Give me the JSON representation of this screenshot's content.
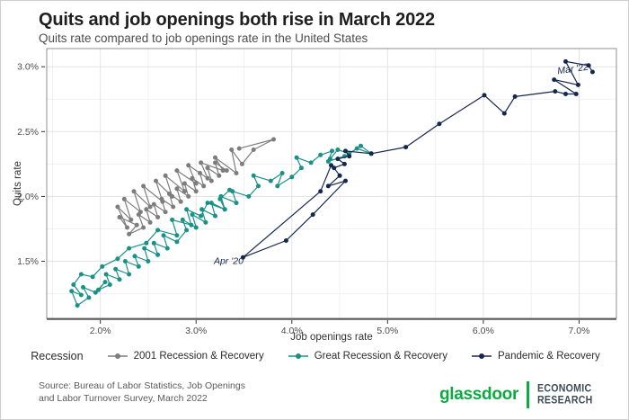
{
  "title": "Quits and job openings both rise in March 2022",
  "subtitle": "Quits rate compared to job openings rate in the United States",
  "source_line1": "Source: Bureau of Labor Statistics, Job Openings",
  "source_line2": "and Labor Turnover Survey, March 2022",
  "branding": {
    "name": "glassdoor",
    "dept_line1": "ECONOMIC",
    "dept_line2": "RESEARCH",
    "brand_green": "#0caa41",
    "dept_color": "#3d4b54"
  },
  "legend": {
    "title": "Recession"
  },
  "chart_data": {
    "type": "scatter",
    "title": "Quits and job openings both rise in March 2022",
    "subtitle": "Quits rate compared to job openings rate in the United States",
    "xlabel": "Job openings rate",
    "ylabel": "Quits rate",
    "xlim": [
      1.44,
      7.39
    ],
    "ylim": [
      1.06,
      3.14
    ],
    "x_ticks": {
      "values": [
        2,
        3,
        4,
        5,
        6,
        7
      ],
      "labels": [
        "2.0%",
        "3.0%",
        "4.0%",
        "5.0%",
        "6.0%",
        "7.0%"
      ]
    },
    "y_ticks": {
      "values": [
        1.5,
        2.0,
        2.5,
        3.0
      ],
      "labels": [
        "1.5%",
        "2.0%",
        "2.5%",
        "3.0%"
      ]
    },
    "x_minor_step": 0.5,
    "y_minor_step": 0.25,
    "grid": true,
    "legend_position": "bottom",
    "connected": true,
    "annotations": [
      {
        "text": "Mar '22",
        "x": 6.94,
        "y": 2.96,
        "rotate": -8
      },
      {
        "text": "Apr '20",
        "x": 3.34,
        "y": 1.48,
        "rotate": 0
      }
    ],
    "series": [
      {
        "name": "2001 Recession & Recovery",
        "color": "#7d7d7d",
        "points": [
          [
            3.45,
            2.37
          ],
          [
            3.81,
            2.44
          ],
          [
            3.6,
            2.36
          ],
          [
            3.48,
            2.25
          ],
          [
            3.37,
            2.36
          ],
          [
            3.42,
            2.18
          ],
          [
            3.2,
            2.3
          ],
          [
            3.28,
            2.2
          ],
          [
            3.05,
            2.26
          ],
          [
            3.12,
            2.14
          ],
          [
            2.92,
            2.24
          ],
          [
            3.0,
            2.1
          ],
          [
            2.8,
            2.2
          ],
          [
            2.88,
            2.04
          ],
          [
            2.68,
            2.16
          ],
          [
            2.75,
            2.0
          ],
          [
            2.58,
            2.12
          ],
          [
            2.65,
            1.96
          ],
          [
            2.45,
            2.08
          ],
          [
            2.52,
            1.92
          ],
          [
            2.35,
            2.04
          ],
          [
            2.42,
            1.88
          ],
          [
            2.25,
            1.98
          ],
          [
            2.32,
            1.82
          ],
          [
            2.18,
            1.92
          ],
          [
            2.28,
            1.76
          ],
          [
            2.2,
            1.84
          ],
          [
            2.38,
            1.78
          ],
          [
            2.3,
            1.71
          ],
          [
            2.45,
            1.76
          ],
          [
            2.4,
            1.86
          ],
          [
            2.52,
            1.8
          ],
          [
            2.48,
            1.9
          ],
          [
            2.6,
            1.84
          ],
          [
            2.56,
            1.94
          ],
          [
            2.68,
            1.88
          ],
          [
            2.64,
            1.98
          ],
          [
            2.76,
            1.92
          ],
          [
            2.72,
            2.02
          ],
          [
            2.84,
            1.96
          ],
          [
            2.8,
            2.06
          ],
          [
            2.92,
            2.0
          ],
          [
            2.88,
            2.1
          ],
          [
            3.0,
            2.04
          ],
          [
            2.96,
            2.14
          ],
          [
            3.08,
            2.08
          ],
          [
            3.04,
            2.18
          ],
          [
            3.16,
            2.12
          ],
          [
            3.12,
            2.22
          ],
          [
            3.24,
            2.16
          ],
          [
            3.2,
            2.26
          ],
          [
            3.32,
            2.2
          ]
        ]
      },
      {
        "name": "Great Recession & Recovery",
        "color": "#1a9187",
        "points": [
          [
            3.35,
            2.05
          ],
          [
            3.25,
            1.98
          ],
          [
            3.3,
            1.9
          ],
          [
            3.12,
            1.95
          ],
          [
            3.05,
            1.85
          ],
          [
            2.9,
            1.9
          ],
          [
            2.95,
            1.78
          ],
          [
            2.75,
            1.82
          ],
          [
            2.8,
            1.7
          ],
          [
            2.6,
            1.74
          ],
          [
            2.48,
            1.64
          ],
          [
            2.3,
            1.6
          ],
          [
            2.18,
            1.52
          ],
          [
            2.02,
            1.46
          ],
          [
            1.92,
            1.38
          ],
          [
            1.8,
            1.4
          ],
          [
            1.72,
            1.32
          ],
          [
            1.8,
            1.24
          ],
          [
            1.7,
            1.27
          ],
          [
            1.76,
            1.16
          ],
          [
            1.88,
            1.22
          ],
          [
            1.82,
            1.3
          ],
          [
            1.95,
            1.26
          ],
          [
            2.05,
            1.34
          ],
          [
            1.98,
            1.28
          ],
          [
            2.1,
            1.32
          ],
          [
            2.06,
            1.4
          ],
          [
            2.2,
            1.36
          ],
          [
            2.16,
            1.44
          ],
          [
            2.3,
            1.4
          ],
          [
            2.26,
            1.5
          ],
          [
            2.4,
            1.46
          ],
          [
            2.36,
            1.54
          ],
          [
            2.5,
            1.5
          ],
          [
            2.46,
            1.6
          ],
          [
            2.6,
            1.55
          ],
          [
            2.56,
            1.64
          ],
          [
            2.7,
            1.6
          ],
          [
            2.66,
            1.7
          ],
          [
            2.8,
            1.65
          ],
          [
            2.9,
            1.74
          ],
          [
            2.86,
            1.82
          ],
          [
            3.0,
            1.76
          ],
          [
            2.96,
            1.86
          ],
          [
            3.1,
            1.8
          ],
          [
            3.06,
            1.9
          ],
          [
            3.2,
            1.85
          ],
          [
            3.16,
            1.95
          ],
          [
            3.3,
            1.9
          ],
          [
            3.26,
            2.0
          ],
          [
            3.42,
            1.95
          ],
          [
            3.38,
            2.04
          ],
          [
            3.55,
            2.0
          ],
          [
            3.65,
            2.08
          ],
          [
            3.6,
            2.16
          ],
          [
            3.78,
            2.12
          ],
          [
            3.9,
            2.18
          ],
          [
            3.85,
            2.08
          ],
          [
            4.0,
            2.15
          ],
          [
            4.1,
            2.22
          ],
          [
            4.05,
            2.3
          ],
          [
            4.2,
            2.26
          ],
          [
            4.3,
            2.32
          ],
          [
            4.42,
            2.35
          ],
          [
            4.38,
            2.27
          ],
          [
            4.55,
            2.31
          ],
          [
            4.68,
            2.37
          ],
          [
            4.83,
            2.33
          ],
          [
            4.72,
            2.39
          ],
          [
            4.6,
            2.33
          ],
          [
            4.48,
            2.36
          ],
          [
            4.4,
            2.29
          ]
        ]
      },
      {
        "name": "Pandemic & Recovery",
        "color": "#15274f",
        "points": [
          [
            4.41,
            2.24
          ],
          [
            4.3,
            2.04
          ],
          [
            3.49,
            1.53
          ],
          [
            3.94,
            1.66
          ],
          [
            4.22,
            1.86
          ],
          [
            4.56,
            2.12
          ],
          [
            4.38,
            2.08
          ],
          [
            4.5,
            2.16
          ],
          [
            4.44,
            2.22
          ],
          [
            4.55,
            2.25
          ],
          [
            4.48,
            2.29
          ],
          [
            4.6,
            2.31
          ],
          [
            4.56,
            2.35
          ],
          [
            4.83,
            2.33
          ],
          [
            5.19,
            2.38
          ],
          [
            5.54,
            2.56
          ],
          [
            6.01,
            2.78
          ],
          [
            6.22,
            2.64
          ],
          [
            6.33,
            2.77
          ],
          [
            6.75,
            2.81
          ],
          [
            6.86,
            2.79
          ],
          [
            6.97,
            2.79
          ],
          [
            6.74,
            2.9
          ],
          [
            6.99,
            2.86
          ],
          [
            6.86,
            3.04
          ],
          [
            7.1,
            3.01
          ],
          [
            7.14,
            2.96
          ]
        ]
      }
    ]
  }
}
